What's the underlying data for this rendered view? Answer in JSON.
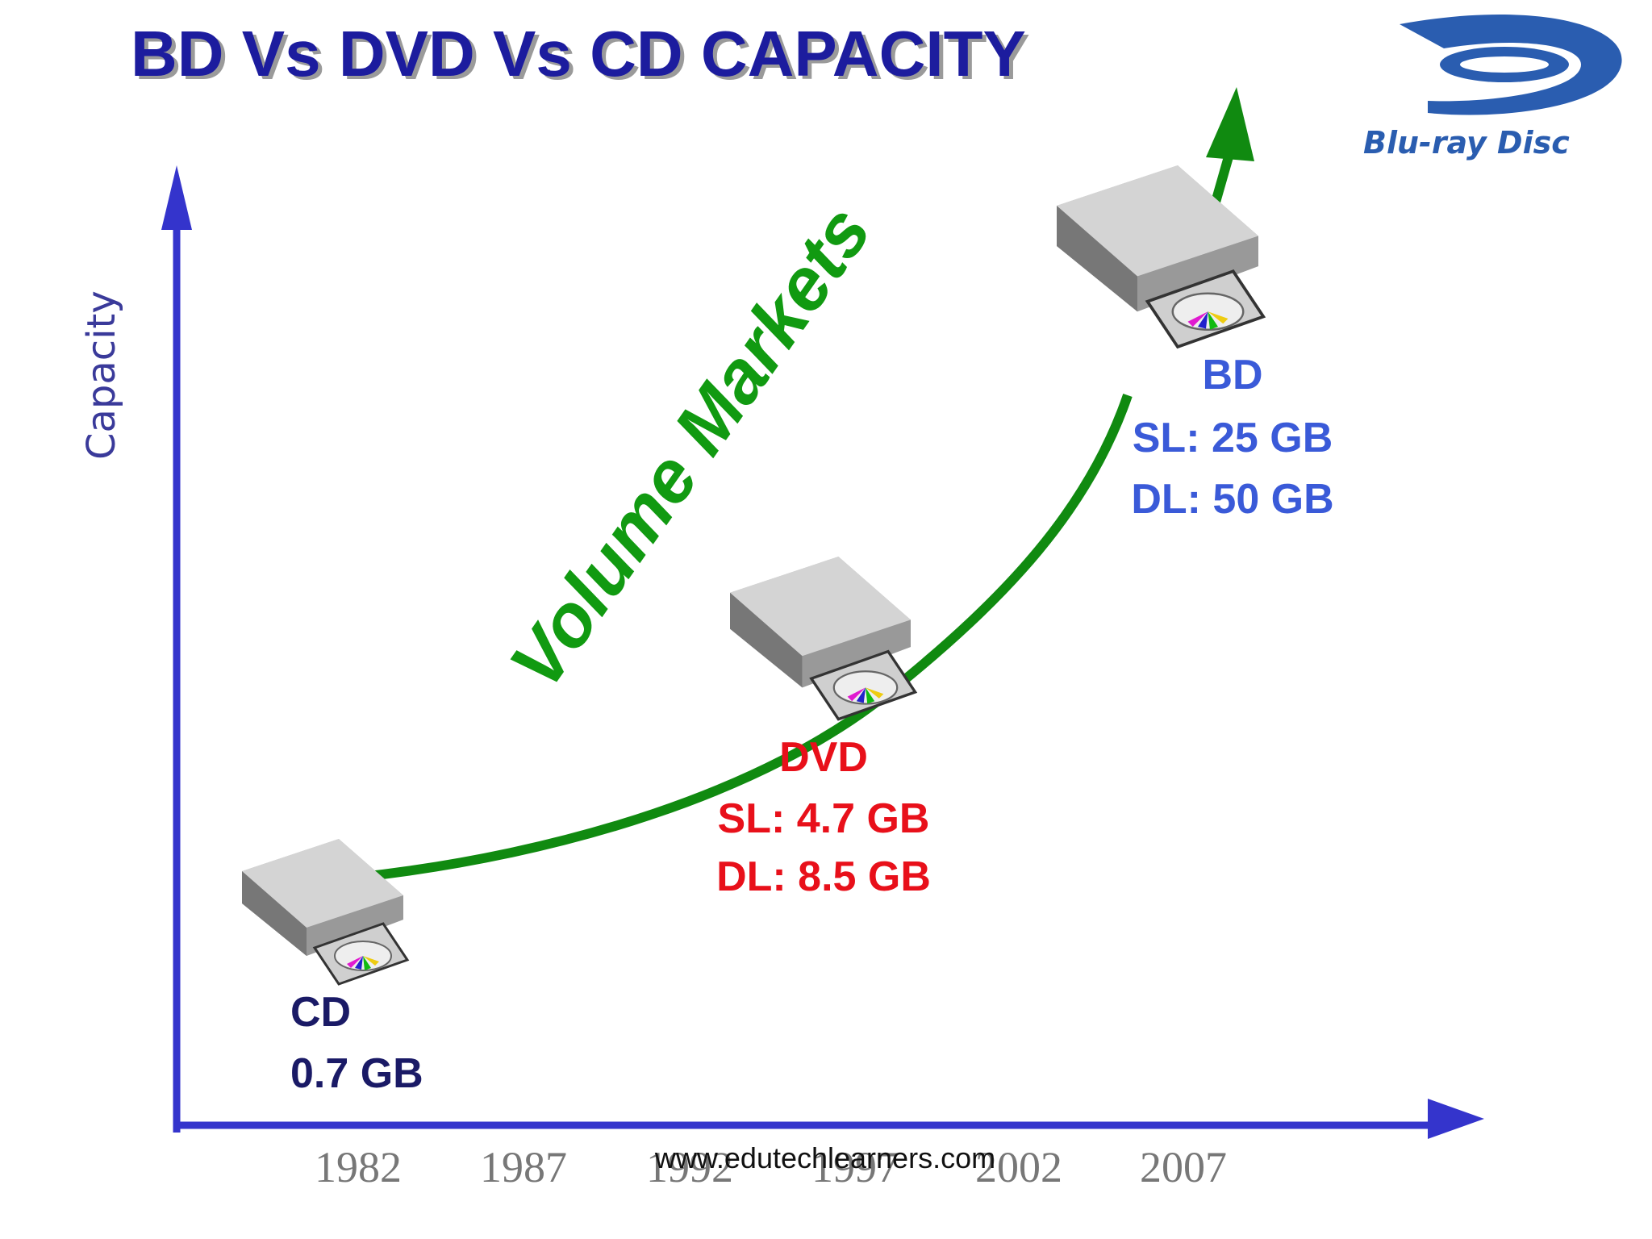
{
  "title": "BD Vs DVD Vs CD CAPACITY",
  "logo": {
    "text": "Blu-ray Disc"
  },
  "axes": {
    "y_label": "Capacity",
    "x_labels": [
      "1982",
      "1987",
      "1992",
      "1997",
      "2002",
      "2007"
    ]
  },
  "curve_label": "Volume Markets",
  "items": [
    {
      "name": "CD",
      "lines": [
        "0.7 GB"
      ]
    },
    {
      "name": "DVD",
      "lines": [
        "SL: 4.7 GB",
        "DL: 8.5 GB"
      ]
    },
    {
      "name": "BD",
      "lines": [
        "SL: 25 GB",
        "DL: 50 GB"
      ]
    }
  ],
  "watermark": "www.edutechlearners.com"
}
